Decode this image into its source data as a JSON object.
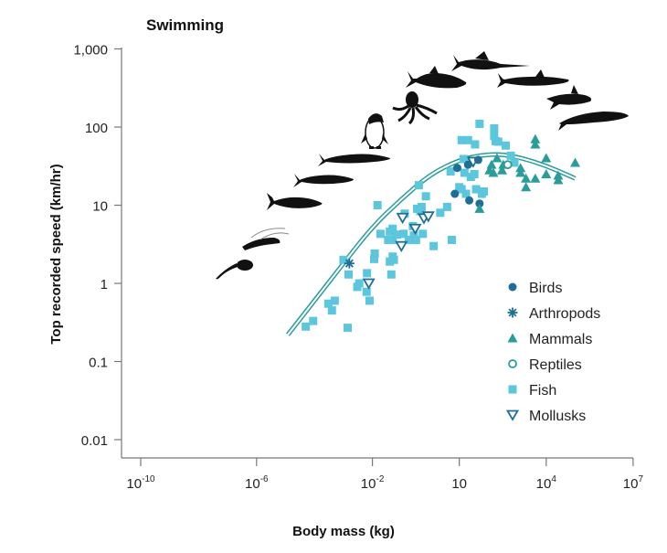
{
  "chart_data": {
    "type": "scatter",
    "title": "Swimming",
    "xlabel": "Body mass (kg)",
    "ylabel": "Top recorded speed (km/hr)",
    "xscale": "log",
    "yscale": "log",
    "xlim": [
      1e-10,
      10000000.0
    ],
    "ylim": [
      0.006,
      1000
    ],
    "x_ticks": [
      {
        "value": 1e-10,
        "base": "10",
        "exp": "-10"
      },
      {
        "value": 1e-06,
        "base": "10",
        "exp": "-6"
      },
      {
        "value": 0.01,
        "base": "10",
        "exp": "-2"
      },
      {
        "value": 10,
        "base": "10",
        "exp": ""
      },
      {
        "value": 10000.0,
        "base": "10",
        "exp": "4"
      },
      {
        "value": 10000000.0,
        "base": "10",
        "exp": "7"
      }
    ],
    "y_ticks": [
      {
        "value": 1000,
        "label": "1,000"
      },
      {
        "value": 100,
        "label": "100"
      },
      {
        "value": 10,
        "label": "10"
      },
      {
        "value": 1,
        "label": "1"
      },
      {
        "value": 0.1,
        "label": "0.1"
      },
      {
        "value": 0.01,
        "label": "0.01"
      }
    ],
    "grid": false,
    "legend_position": "bottom-right",
    "series": [
      {
        "name": "Birds",
        "marker": "circle-filled",
        "color": "#1f6e96",
        "points": [
          [
            20,
            33
          ],
          [
            45,
            38
          ],
          [
            7,
            14
          ],
          [
            22,
            11.5
          ],
          [
            50,
            10.5
          ],
          [
            8.5,
            30
          ]
        ]
      },
      {
        "name": "Arthropods",
        "marker": "asterisk",
        "color": "#1f6e96",
        "points": [
          [
            0.0016,
            1.8
          ]
        ]
      },
      {
        "name": "Mammals",
        "marker": "triangle-filled",
        "color": "#2a9d9a",
        "points": [
          [
            130,
            33
          ],
          [
            200,
            40
          ],
          [
            110,
            28
          ],
          [
            150,
            26
          ],
          [
            300,
            28
          ],
          [
            330,
            33
          ],
          [
            50,
            9
          ],
          [
            1300,
            30
          ],
          [
            1300,
            26
          ],
          [
            4200,
            70
          ],
          [
            4200,
            60
          ],
          [
            10000,
            40
          ],
          [
            10000,
            25
          ],
          [
            2000,
            22
          ],
          [
            2000,
            17
          ],
          [
            4200,
            22
          ],
          [
            26000,
            24
          ],
          [
            26000,
            21
          ],
          [
            100000,
            35
          ]
        ]
      },
      {
        "name": "Reptiles",
        "marker": "circle-open",
        "color": "#2a9d9a",
        "points": [
          [
            470,
            33
          ]
        ]
      },
      {
        "name": "Fish",
        "marker": "square-filled",
        "color": "#5bc6dc",
        "points": [
          [
            5e-05,
            0.28
          ],
          [
            9e-05,
            0.33
          ],
          [
            0.0003,
            0.55
          ],
          [
            0.0005,
            0.6
          ],
          [
            0.0014,
            0.27
          ],
          [
            0.0004,
            0.45
          ],
          [
            0.001,
            2.0
          ],
          [
            0.0015,
            1.3
          ],
          [
            0.0035,
            1.0
          ],
          [
            0.0063,
            0.78
          ],
          [
            0.0065,
            1.35
          ],
          [
            0.012,
            2.4
          ],
          [
            0.003,
            0.9
          ],
          [
            0.008,
            0.6
          ],
          [
            0.05,
            5.0
          ],
          [
            0.015,
            10
          ],
          [
            0.4,
            18
          ],
          [
            0.7,
            13
          ],
          [
            0.13,
            7.8
          ],
          [
            0.35,
            9
          ],
          [
            0.5,
            9.5
          ],
          [
            0.45,
            8.4
          ],
          [
            2.2,
            8
          ],
          [
            3.8,
            9.5
          ],
          [
            0.019,
            4.3
          ],
          [
            0.04,
            4.6
          ],
          [
            0.07,
            4.2
          ],
          [
            0.12,
            4.3
          ],
          [
            0.27,
            4.1
          ],
          [
            0.55,
            4.3
          ],
          [
            0.035,
            3.6
          ],
          [
            0.05,
            3.6
          ],
          [
            0.18,
            3.6
          ],
          [
            0.32,
            3.6
          ],
          [
            5.5,
            3.6
          ],
          [
            1.3,
            3.0
          ],
          [
            0.0115,
            2.05
          ],
          [
            0.05,
            2.2
          ],
          [
            0.04,
            1.9
          ],
          [
            0.055,
            2.0
          ],
          [
            0.045,
            1.3
          ],
          [
            0.25,
            5.4
          ],
          [
            5,
            27
          ],
          [
            14,
            39
          ],
          [
            15,
            26
          ],
          [
            25,
            23
          ],
          [
            17,
            14
          ],
          [
            12,
            16
          ],
          [
            33,
            25
          ],
          [
            10,
            17
          ],
          [
            38,
            16
          ],
          [
            60,
            14
          ],
          [
            70,
            15
          ],
          [
            12,
            68
          ],
          [
            20,
            68
          ],
          [
            35,
            60
          ],
          [
            50,
            110
          ],
          [
            800,
            35
          ],
          [
            600,
            43
          ],
          [
            180,
            66
          ],
          [
            220,
            65
          ],
          [
            400,
            58
          ],
          [
            160,
            96
          ],
          [
            160,
            77
          ]
        ]
      },
      {
        "name": "Mollusks",
        "marker": "triangle-open-down",
        "color": "#1f6e96",
        "points": [
          [
            0.0075,
            1.0
          ],
          [
            0.1,
            3.0
          ],
          [
            0.3,
            5.0
          ],
          [
            0.6,
            6.8
          ],
          [
            0.11,
            6.9
          ],
          [
            0.85,
            7.2
          ],
          [
            30,
            36
          ]
        ]
      }
    ],
    "fit_curve": {
      "name": "trend",
      "color": "#2a9d9a",
      "points": [
        [
          1.2e-05,
          0.22
        ],
        [
          0.0001,
          0.6
        ],
        [
          0.001,
          1.8
        ],
        [
          0.01,
          5.3
        ],
        [
          0.1,
          12
        ],
        [
          1,
          25
        ],
        [
          10,
          38
        ],
        [
          60,
          44
        ],
        [
          300,
          45
        ],
        [
          1500,
          40
        ],
        [
          10000,
          32
        ],
        [
          60000,
          24
        ],
        [
          100000,
          22
        ]
      ]
    },
    "legend": [
      {
        "label": "Birds",
        "marker": "circle-filled",
        "color": "#1f6e96"
      },
      {
        "label": "Arthropods",
        "marker": "asterisk",
        "color": "#1f6e96"
      },
      {
        "label": "Mammals",
        "marker": "triangle-filled",
        "color": "#2a9d9a"
      },
      {
        "label": "Reptiles",
        "marker": "circle-open",
        "color": "#2a9d9a"
      },
      {
        "label": "Fish",
        "marker": "square-filled",
        "color": "#5bc6dc"
      },
      {
        "label": "Mollusks",
        "marker": "triangle-open-down",
        "color": "#1f6e96"
      }
    ],
    "illustrations": [
      {
        "name": "tadpole-silhouette"
      },
      {
        "name": "shrimp-silhouette"
      },
      {
        "name": "small-fish-silhouette"
      },
      {
        "name": "herring-silhouette"
      },
      {
        "name": "mackerel-silhouette"
      },
      {
        "name": "penguin-illustration"
      },
      {
        "name": "octopus-silhouette"
      },
      {
        "name": "tuna-silhouette"
      },
      {
        "name": "swordfish-silhouette"
      },
      {
        "name": "shark-silhouette"
      },
      {
        "name": "orca-silhouette"
      },
      {
        "name": "whale-silhouette"
      }
    ]
  }
}
